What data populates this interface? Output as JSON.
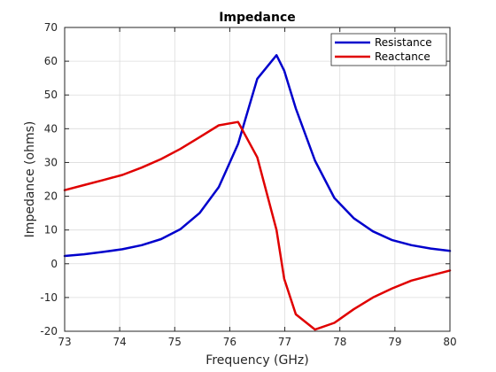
{
  "chart_data": {
    "type": "line",
    "title": "Impedance",
    "xlabel": "Frequency (GHz)",
    "ylabel": "Impedance (ohms)",
    "xlim": [
      73,
      80
    ],
    "ylim": [
      -20,
      70
    ],
    "xticks": [
      73,
      74,
      75,
      76,
      77,
      78,
      79,
      80
    ],
    "yticks": [
      -20,
      -10,
      0,
      10,
      20,
      30,
      40,
      50,
      60,
      70
    ],
    "grid": true,
    "legend_position": "top-right",
    "x": [
      73.0,
      73.35,
      73.7,
      74.05,
      74.4,
      74.75,
      75.1,
      75.45,
      75.8,
      76.15,
      76.5,
      76.85,
      76.99,
      77.2,
      77.55,
      77.9,
      78.25,
      78.6,
      78.95,
      79.3,
      79.65,
      80.0
    ],
    "series": [
      {
        "name": "Resistance",
        "color": "#0000cc",
        "values": [
          2.3,
          2.8,
          3.5,
          4.3,
          5.5,
          7.3,
          10.2,
          15.0,
          22.7,
          35.5,
          54.8,
          61.8,
          57.2,
          46.0,
          30.5,
          19.5,
          13.5,
          9.6,
          7.0,
          5.5,
          4.5,
          3.8
        ]
      },
      {
        "name": "Reactance",
        "color": "#e00000",
        "values": [
          21.8,
          23.3,
          24.8,
          26.3,
          28.5,
          31.0,
          34.0,
          37.5,
          41.0,
          42.0,
          31.5,
          10.0,
          -4.5,
          -15.0,
          -19.5,
          -17.5,
          -13.5,
          -10.0,
          -7.3,
          -5.0,
          -3.5,
          -2.0
        ]
      }
    ]
  }
}
